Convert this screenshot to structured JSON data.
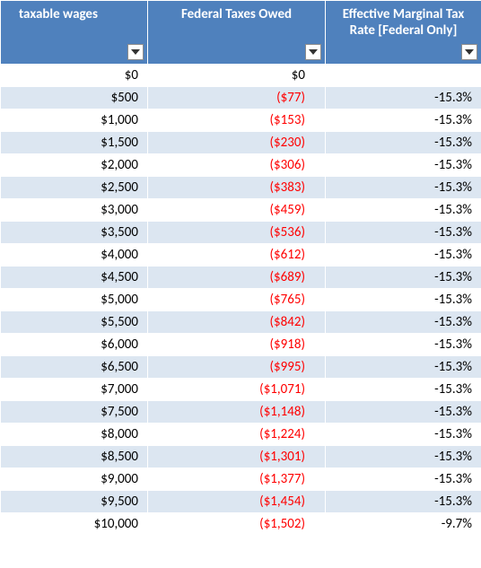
{
  "colors": {
    "header_bg": "#4f81bd",
    "row_even_bg": "#dce6f1",
    "row_odd_bg": "#ffffff",
    "negative_text": "#ff0000",
    "cell_text": "#000000",
    "header_text": "#ffffff",
    "filter_border": "#8c8c8c",
    "filter_arrow": "#333333"
  },
  "columns": [
    {
      "label": "taxable wages"
    },
    {
      "label": "Federal Taxes Owed"
    },
    {
      "label": "Effective Marginal Tax Rate [Federal Only]"
    }
  ],
  "rows": [
    {
      "wages": "$0",
      "taxes": "$0",
      "rate": "",
      "taxes_neg": false
    },
    {
      "wages": "$500",
      "taxes": "($77)",
      "rate": "-15.3%",
      "taxes_neg": true
    },
    {
      "wages": "$1,000",
      "taxes": "($153)",
      "rate": "-15.3%",
      "taxes_neg": true
    },
    {
      "wages": "$1,500",
      "taxes": "($230)",
      "rate": "-15.3%",
      "taxes_neg": true
    },
    {
      "wages": "$2,000",
      "taxes": "($306)",
      "rate": "-15.3%",
      "taxes_neg": true
    },
    {
      "wages": "$2,500",
      "taxes": "($383)",
      "rate": "-15.3%",
      "taxes_neg": true
    },
    {
      "wages": "$3,000",
      "taxes": "($459)",
      "rate": "-15.3%",
      "taxes_neg": true
    },
    {
      "wages": "$3,500",
      "taxes": "($536)",
      "rate": "-15.3%",
      "taxes_neg": true
    },
    {
      "wages": "$4,000",
      "taxes": "($612)",
      "rate": "-15.3%",
      "taxes_neg": true
    },
    {
      "wages": "$4,500",
      "taxes": "($689)",
      "rate": "-15.3%",
      "taxes_neg": true
    },
    {
      "wages": "$5,000",
      "taxes": "($765)",
      "rate": "-15.3%",
      "taxes_neg": true
    },
    {
      "wages": "$5,500",
      "taxes": "($842)",
      "rate": "-15.3%",
      "taxes_neg": true
    },
    {
      "wages": "$6,000",
      "taxes": "($918)",
      "rate": "-15.3%",
      "taxes_neg": true
    },
    {
      "wages": "$6,500",
      "taxes": "($995)",
      "rate": "-15.3%",
      "taxes_neg": true
    },
    {
      "wages": "$7,000",
      "taxes": "($1,071)",
      "rate": "-15.3%",
      "taxes_neg": true
    },
    {
      "wages": "$7,500",
      "taxes": "($1,148)",
      "rate": "-15.3%",
      "taxes_neg": true
    },
    {
      "wages": "$8,000",
      "taxes": "($1,224)",
      "rate": "-15.3%",
      "taxes_neg": true
    },
    {
      "wages": "$8,500",
      "taxes": "($1,301)",
      "rate": "-15.3%",
      "taxes_neg": true
    },
    {
      "wages": "$9,000",
      "taxes": "($1,377)",
      "rate": "-15.3%",
      "taxes_neg": true
    },
    {
      "wages": "$9,500",
      "taxes": "($1,454)",
      "rate": "-15.3%",
      "taxes_neg": true
    },
    {
      "wages": "$10,000",
      "taxes": "($1,502)",
      "rate": "-9.7%",
      "taxes_neg": true
    }
  ]
}
